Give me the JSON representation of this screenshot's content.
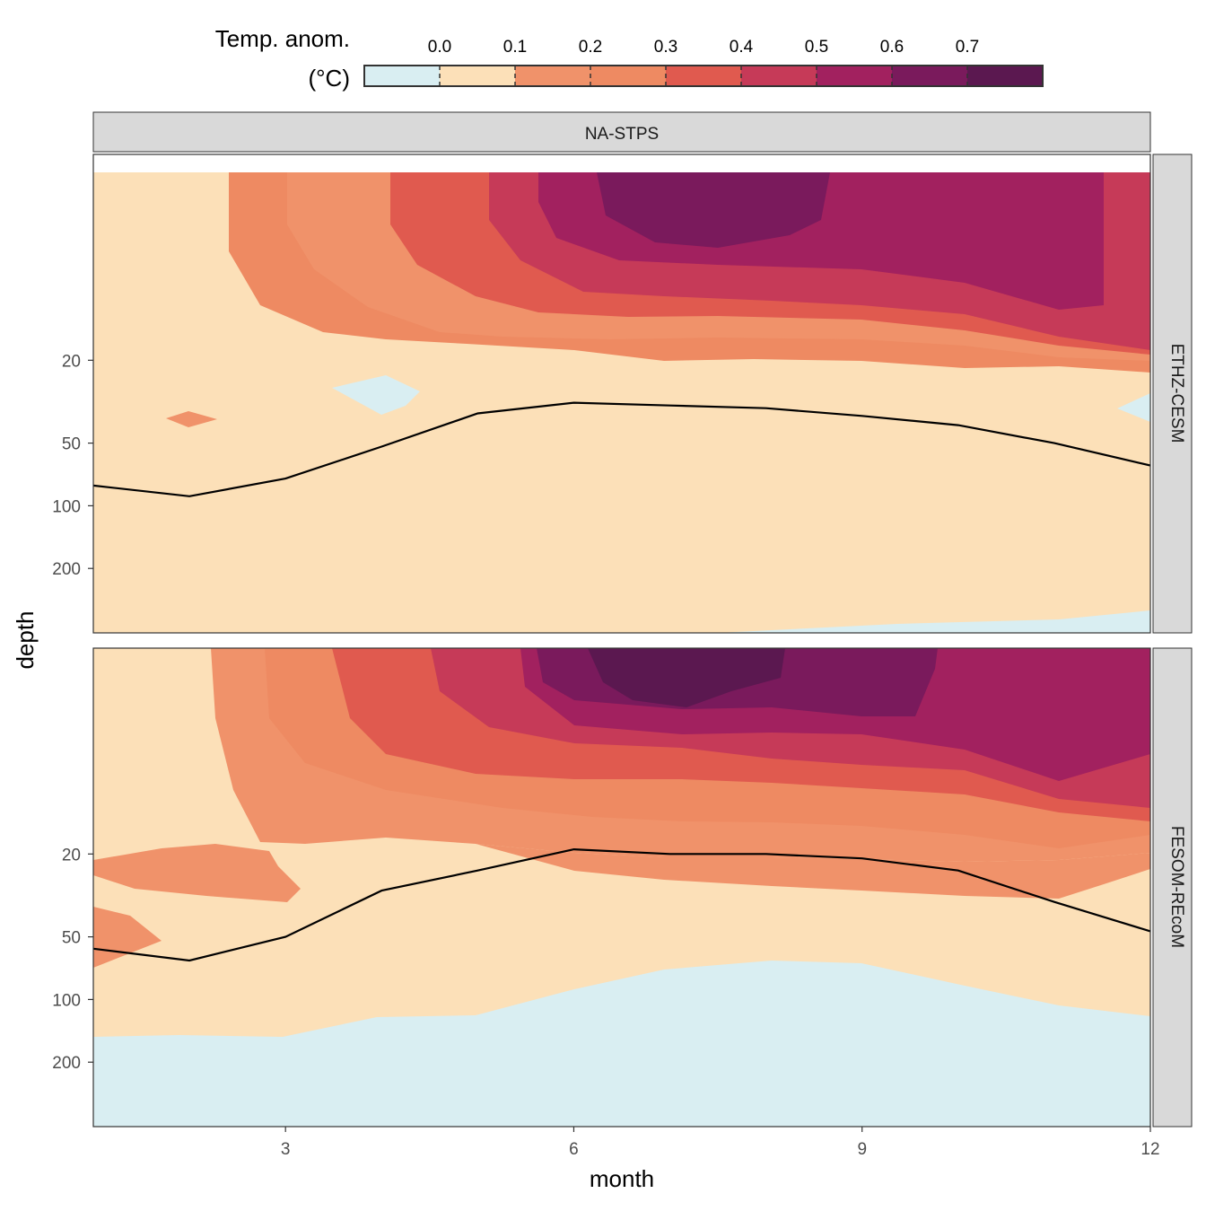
{
  "legend": {
    "title_line1": "Temp. anom.",
    "title_line2": "(°C)",
    "breaks": [
      "0.0",
      "0.1",
      "0.2",
      "0.3",
      "0.4",
      "0.5",
      "0.6",
      "0.7"
    ],
    "colors": [
      "#d9eef2",
      "#fce0b8",
      "#f0926a",
      "#ee8a62",
      "#e05a4f",
      "#c63a58",
      "#a2215f",
      "#7a1a5c",
      "#5b1850"
    ]
  },
  "facet_strip_top": "NA-STPS",
  "x_axis_title": "month",
  "y_axis_title": "depth",
  "chart_data": {
    "type": "heatmap",
    "x": {
      "label": "month",
      "ticks": [
        3,
        6,
        9,
        12
      ],
      "range": [
        1,
        12
      ]
    },
    "y": {
      "label": "depth",
      "scale": "log",
      "reversed": true,
      "ticks": [
        20,
        50,
        100,
        200
      ]
    },
    "color_levels": [
      0.0,
      0.1,
      0.2,
      0.3,
      0.4,
      0.5,
      0.6,
      0.7
    ],
    "panels": [
      {
        "name": "ETHZ-CESM",
        "mld_line": {
          "month": [
            1,
            2,
            3,
            4,
            5,
            6,
            7,
            8,
            9,
            10,
            11,
            12
          ],
          "depth": [
            80,
            90,
            74,
            52,
            36,
            32,
            33,
            34,
            37,
            41,
            50,
            64
          ]
        }
      },
      {
        "name": "FESOM-REcoM",
        "mld_line": {
          "month": [
            1,
            2,
            3,
            4,
            5,
            6,
            7,
            8,
            9,
            10,
            11,
            12
          ],
          "depth": [
            57,
            65,
            50,
            30,
            24,
            19,
            20,
            20,
            21,
            24,
            34,
            47
          ]
        }
      }
    ]
  }
}
